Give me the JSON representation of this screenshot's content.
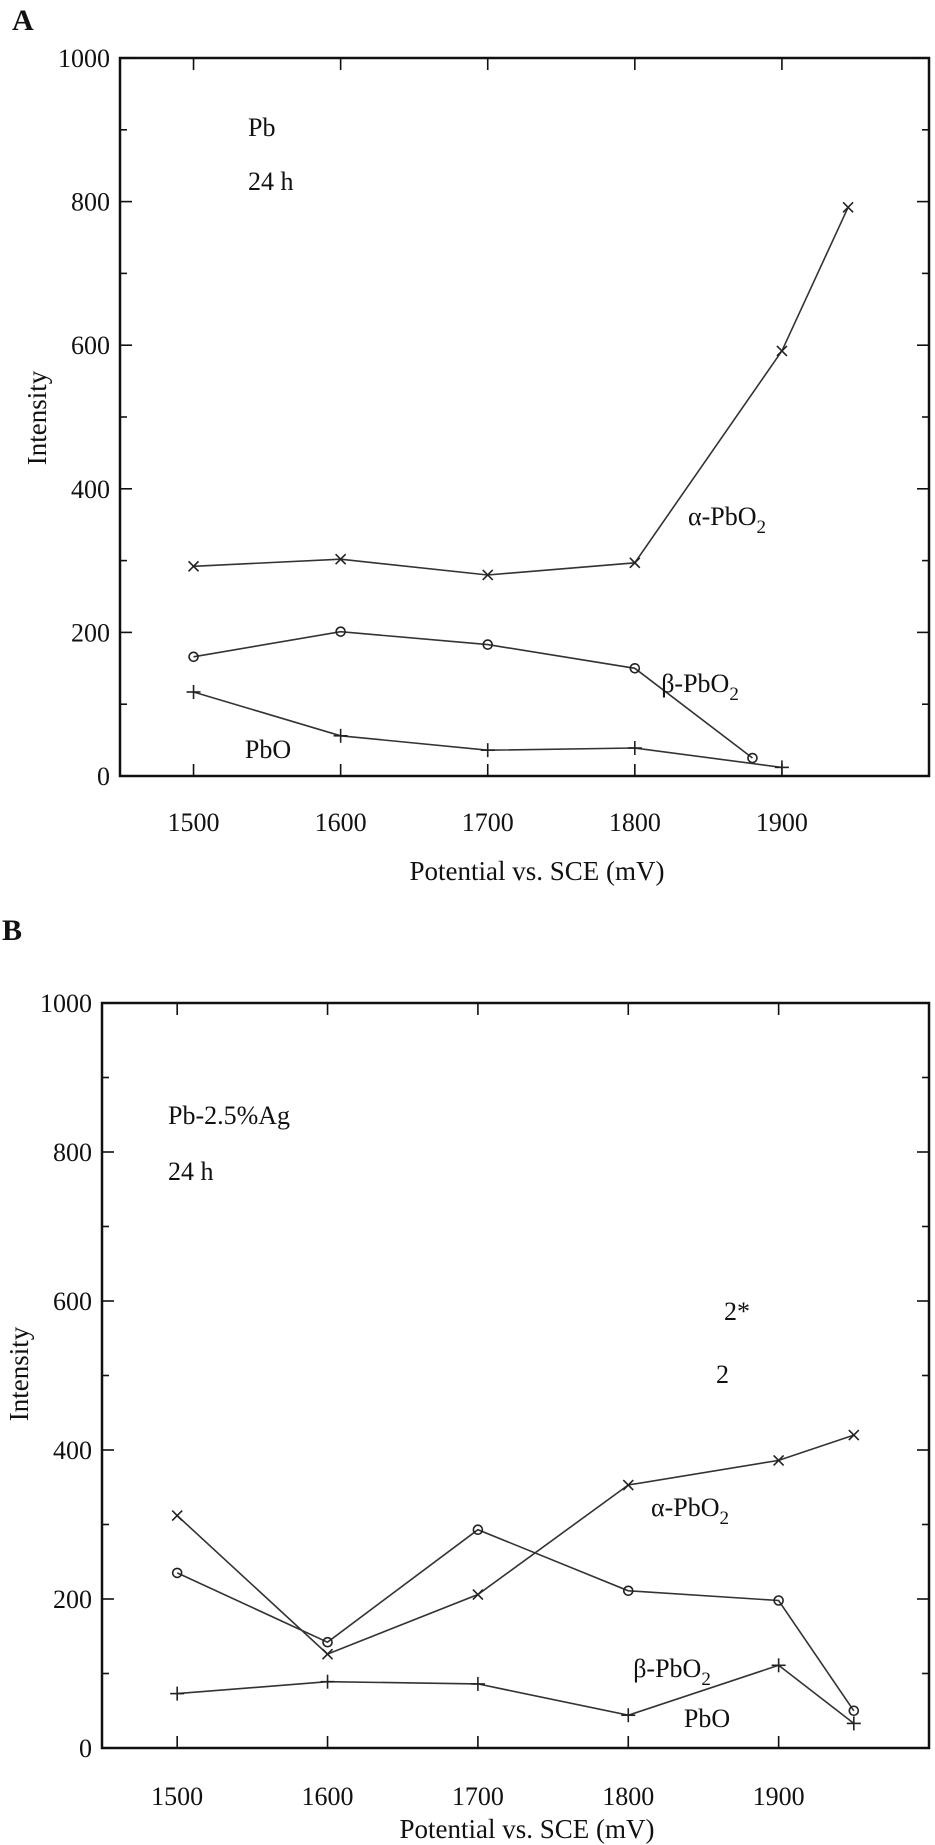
{
  "chart_data": [
    {
      "type": "line",
      "panel_label": "A",
      "annotations": [
        "Pb",
        "24 h"
      ],
      "xlabel": "Potential vs. SCE (mV)",
      "ylabel": "Intensity",
      "xlim": [
        1450,
        2000
      ],
      "ylim": [
        0,
        1000
      ],
      "x_ticks": [
        1500,
        1600,
        1700,
        1800,
        1900
      ],
      "y_ticks": [
        0,
        200,
        400,
        600,
        800,
        1000
      ],
      "series": [
        {
          "name": "α-PbO",
          "name_sub": "2",
          "marker": "x",
          "points": [
            [
              1500,
              292
            ],
            [
              1600,
              302
            ],
            [
              1700,
              280
            ],
            [
              1800,
              297
            ],
            [
              1900,
              592
            ],
            [
              1945,
              792
            ]
          ]
        },
        {
          "name": "β-PbO",
          "name_sub": "2",
          "marker": "o",
          "points": [
            [
              1500,
              166
            ],
            [
              1600,
              201
            ],
            [
              1700,
              183
            ],
            [
              1800,
              150
            ],
            [
              1880,
              25
            ]
          ]
        },
        {
          "name": "PbO",
          "marker": "+",
          "points": [
            [
              1500,
              117
            ],
            [
              1600,
              56
            ],
            [
              1700,
              36
            ],
            [
              1800,
              39
            ],
            [
              1900,
              12
            ]
          ]
        }
      ]
    },
    {
      "type": "line",
      "panel_label": "B",
      "annotations": [
        "Pb-2.5%Ag",
        "24 h"
      ],
      "stray_labels": [
        "2*",
        "2"
      ],
      "xlabel": "Potential vs. SCE (mV)",
      "ylabel": "Intensity",
      "xlim": [
        1450,
        2000
      ],
      "ylim": [
        0,
        1000
      ],
      "x_ticks": [
        1500,
        1600,
        1700,
        1800,
        1900
      ],
      "y_ticks": [
        0,
        200,
        400,
        600,
        800,
        1000
      ],
      "series": [
        {
          "name": "α-PbO",
          "name_sub": "2",
          "marker": "x",
          "points": [
            [
              1500,
              312
            ],
            [
              1600,
              126
            ],
            [
              1700,
              206
            ],
            [
              1800,
              353
            ],
            [
              1900,
              386
            ],
            [
              1950,
              420
            ]
          ]
        },
        {
          "name": "β-PbO",
          "name_sub": "2",
          "marker": "o",
          "points": [
            [
              1500,
              235
            ],
            [
              1600,
              142
            ],
            [
              1700,
              293
            ],
            [
              1800,
              211
            ],
            [
              1900,
              198
            ],
            [
              1950,
              50
            ]
          ]
        },
        {
          "name": "PbO",
          "marker": "+",
          "points": [
            [
              1500,
              73
            ],
            [
              1600,
              89
            ],
            [
              1700,
              86
            ],
            [
              1800,
              44
            ],
            [
              1900,
              111
            ],
            [
              1950,
              33
            ]
          ]
        }
      ]
    }
  ]
}
